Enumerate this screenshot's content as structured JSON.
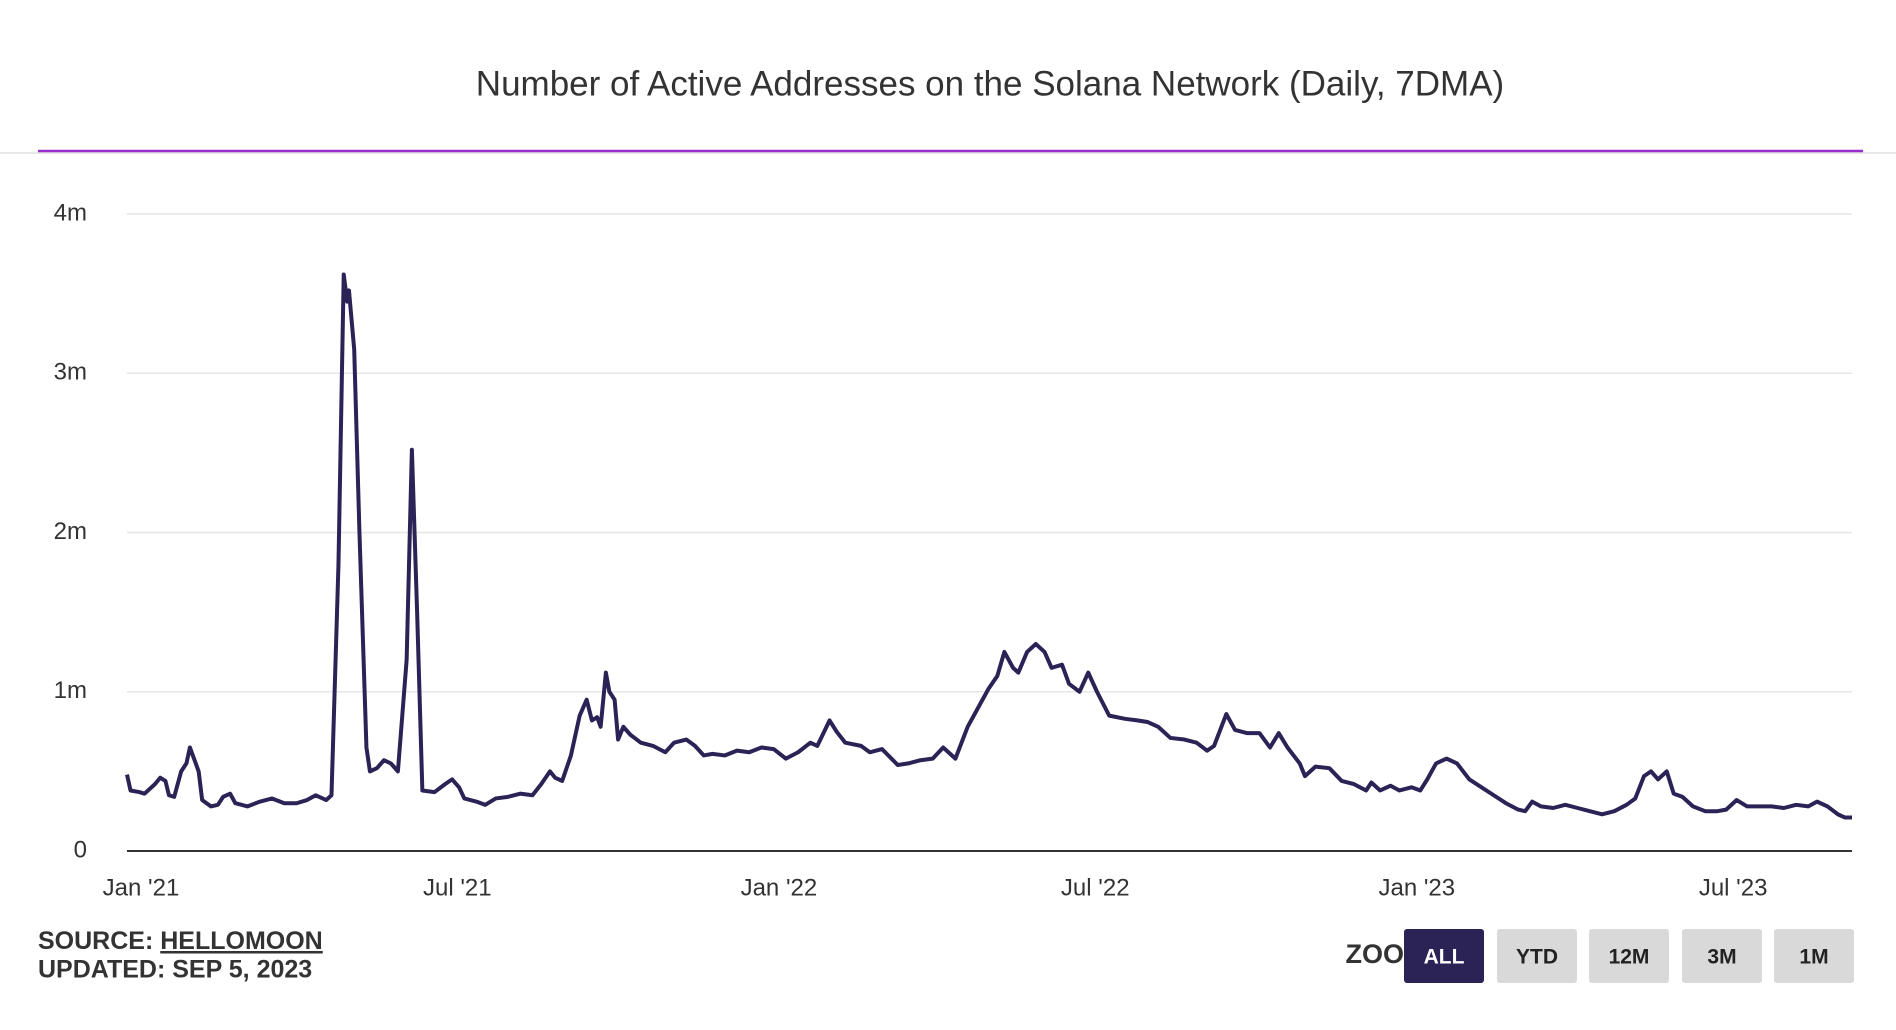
{
  "chart_data": {
    "type": "line",
    "title": "Number of Active Addresses on the Solana Network (Daily, 7DMA)",
    "x": [
      "2020-12-24",
      "2020-12-26",
      "2020-12-31",
      "2021-01-03",
      "2021-01-09",
      "2021-01-12",
      "2021-01-15",
      "2021-01-17",
      "2021-01-20",
      "2021-01-24",
      "2021-01-27",
      "2021-01-29",
      "2021-02-03",
      "2021-02-05",
      "2021-02-10",
      "2021-02-14",
      "2021-02-17",
      "2021-02-21",
      "2021-02-24",
      "2021-03-03",
      "2021-03-10",
      "2021-03-17",
      "2021-03-24",
      "2021-03-31",
      "2021-04-06",
      "2021-04-11",
      "2021-04-17",
      "2021-04-20",
      "2021-04-24",
      "2021-04-27",
      "2021-04-29",
      "2021-04-30",
      "2021-05-03",
      "2021-05-06",
      "2021-05-10",
      "2021-05-12",
      "2021-05-16",
      "2021-05-20",
      "2021-05-24",
      "2021-05-28",
      "2021-06-02",
      "2021-06-05",
      "2021-06-08",
      "2021-06-11",
      "2021-06-18",
      "2021-06-24",
      "2021-06-28",
      "2021-07-02",
      "2021-07-05",
      "2021-07-12",
      "2021-07-17",
      "2021-07-23",
      "2021-07-30",
      "2021-08-06",
      "2021-08-13",
      "2021-08-18",
      "2021-08-23",
      "2021-08-26",
      "2021-08-30",
      "2021-09-04",
      "2021-09-09",
      "2021-09-13",
      "2021-09-16",
      "2021-09-19",
      "2021-09-21",
      "2021-09-24",
      "2021-09-26",
      "2021-09-29",
      "2021-10-01",
      "2021-10-04",
      "2021-10-08",
      "2021-10-14",
      "2021-10-21",
      "2021-10-28",
      "2021-11-02",
      "2021-11-09",
      "2021-11-14",
      "2021-11-19",
      "2021-11-24",
      "2021-12-01",
      "2021-12-08",
      "2021-12-15",
      "2021-12-22",
      "2021-12-29",
      "2022-01-05",
      "2022-01-12",
      "2022-01-19",
      "2022-01-23",
      "2022-01-30",
      "2022-02-03",
      "2022-02-08",
      "2022-02-17",
      "2022-02-22",
      "2022-03-01",
      "2022-03-10",
      "2022-03-16",
      "2022-03-23",
      "2022-03-30",
      "2022-04-05",
      "2022-04-12",
      "2022-04-19",
      "2022-04-26",
      "2022-05-01",
      "2022-05-06",
      "2022-05-10",
      "2022-05-15",
      "2022-05-18",
      "2022-05-23",
      "2022-05-28",
      "2022-06-02",
      "2022-06-06",
      "2022-06-12",
      "2022-06-16",
      "2022-06-22",
      "2022-06-27",
      "2022-07-02",
      "2022-07-09",
      "2022-07-18",
      "2022-07-25",
      "2022-07-31",
      "2022-08-06",
      "2022-08-13",
      "2022-08-21",
      "2022-08-28",
      "2022-09-03",
      "2022-09-07",
      "2022-09-14",
      "2022-09-19",
      "2022-09-26",
      "2022-10-03",
      "2022-10-09",
      "2022-10-14",
      "2022-10-19",
      "2022-10-26",
      "2022-10-29",
      "2022-11-04",
      "2022-11-12",
      "2022-11-19",
      "2022-11-26",
      "2022-12-03",
      "2022-12-06",
      "2022-12-11",
      "2022-12-17",
      "2022-12-22",
      "2022-12-29",
      "2023-01-03",
      "2023-01-07",
      "2023-01-12",
      "2023-01-18",
      "2023-01-24",
      "2023-01-31",
      "2023-02-07",
      "2023-02-14",
      "2023-02-21",
      "2023-02-28",
      "2023-03-04",
      "2023-03-08",
      "2023-03-13",
      "2023-03-20",
      "2023-03-27",
      "2023-04-03",
      "2023-04-10",
      "2023-04-17",
      "2023-04-24",
      "2023-05-01",
      "2023-05-06",
      "2023-05-11",
      "2023-05-15",
      "2023-05-19",
      "2023-05-24",
      "2023-05-28",
      "2023-06-02",
      "2023-06-08",
      "2023-06-15",
      "2023-06-22",
      "2023-06-27",
      "2023-07-03",
      "2023-07-09",
      "2023-07-16",
      "2023-07-23",
      "2023-07-30",
      "2023-08-06",
      "2023-08-13",
      "2023-08-18",
      "2023-08-24",
      "2023-08-30",
      "2023-09-03",
      "2023-09-07"
    ],
    "series": [
      {
        "color": "#2b2356",
        "values": [
          480000,
          380000,
          370000,
          360000,
          420000,
          460000,
          440000,
          350000,
          340000,
          500000,
          550000,
          650000,
          500000,
          320000,
          280000,
          290000,
          340000,
          360000,
          300000,
          280000,
          310000,
          330000,
          300000,
          300000,
          320000,
          350000,
          320000,
          350000,
          1800000,
          3620000,
          3450000,
          3520000,
          3150000,
          2000000,
          650000,
          500000,
          520000,
          570000,
          550000,
          500000,
          1200000,
          2520000,
          1500000,
          380000,
          370000,
          420000,
          450000,
          400000,
          330000,
          310000,
          290000,
          330000,
          340000,
          360000,
          350000,
          420000,
          500000,
          460000,
          440000,
          600000,
          850000,
          950000,
          820000,
          840000,
          780000,
          1120000,
          1000000,
          950000,
          700000,
          780000,
          730000,
          680000,
          660000,
          620000,
          680000,
          700000,
          660000,
          600000,
          610000,
          600000,
          630000,
          620000,
          650000,
          640000,
          580000,
          620000,
          680000,
          660000,
          820000,
          750000,
          680000,
          660000,
          620000,
          640000,
          540000,
          550000,
          570000,
          580000,
          650000,
          580000,
          780000,
          920000,
          1020000,
          1100000,
          1250000,
          1150000,
          1120000,
          1250000,
          1300000,
          1250000,
          1150000,
          1170000,
          1050000,
          1000000,
          1120000,
          1000000,
          850000,
          830000,
          820000,
          810000,
          780000,
          710000,
          700000,
          680000,
          630000,
          660000,
          860000,
          760000,
          740000,
          740000,
          650000,
          740000,
          650000,
          550000,
          470000,
          530000,
          520000,
          440000,
          420000,
          380000,
          430000,
          380000,
          410000,
          380000,
          400000,
          380000,
          450000,
          550000,
          580000,
          550000,
          450000,
          400000,
          350000,
          300000,
          260000,
          250000,
          310000,
          280000,
          270000,
          290000,
          270000,
          250000,
          230000,
          250000,
          290000,
          330000,
          470000,
          500000,
          450000,
          500000,
          360000,
          340000,
          280000,
          250000,
          250000,
          260000,
          320000,
          280000,
          280000,
          280000,
          270000,
          290000,
          280000,
          310000,
          280000,
          230000,
          210000,
          210000
        ]
      }
    ],
    "xlim": [
      "2020-12-24",
      "2023-09-07"
    ],
    "xticks": [
      {
        "value": "2021-01-01",
        "label": "Jan '21"
      },
      {
        "value": "2021-07-01",
        "label": "Jul '21"
      },
      {
        "value": "2022-01-01",
        "label": "Jan '22"
      },
      {
        "value": "2022-07-01",
        "label": "Jul '22"
      },
      {
        "value": "2023-01-01",
        "label": "Jan '23"
      },
      {
        "value": "2023-07-01",
        "label": "Jul '23"
      }
    ],
    "ylim": [
      0,
      4000000
    ],
    "yticks": [
      0,
      {
        "value": 1000000,
        "label": "1m"
      },
      {
        "value": 2000000,
        "label": "2m"
      },
      {
        "value": 3000000,
        "label": "3m"
      },
      {
        "value": 4000000,
        "label": "4m"
      }
    ],
    "grid": true
  },
  "footer": {
    "source_label": "SOURCE:",
    "source_name": "HELLOMOON",
    "updated": "UPDATED: SEP 5, 2023"
  },
  "zoom": {
    "label": "ZOOM",
    "buttons": [
      "ALL",
      "YTD",
      "12M",
      "3M",
      "1M"
    ],
    "active": "ALL"
  }
}
